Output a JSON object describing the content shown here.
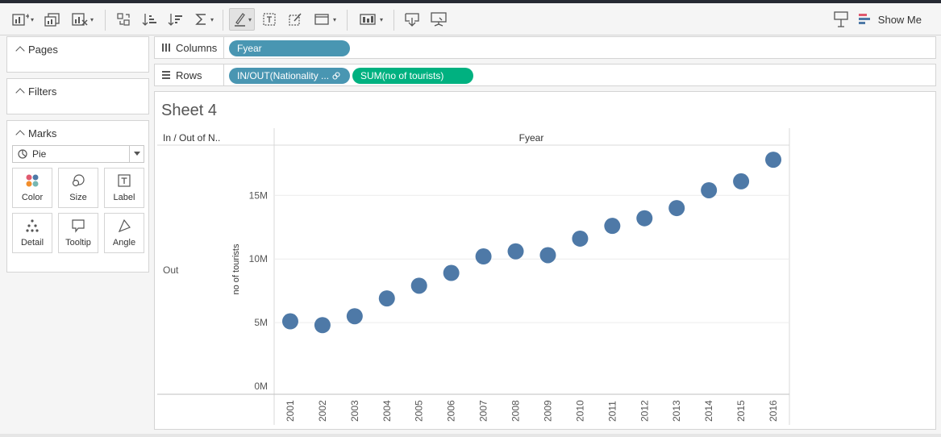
{
  "toolbar": {
    "show_me_label": "Show Me",
    "icons": [
      "new-worksheet-icon",
      "duplicate-sheet-icon",
      "clear-sheet-icon",
      "swap-rows-columns-icon",
      "sort-ascending-icon",
      "sort-descending-icon",
      "totals-icon",
      "highlight-icon",
      "labels-icon",
      "format-workbook-icon",
      "fit-icon",
      "show-cards-icon",
      "download-icon",
      "presentation-icon",
      "tooltip-pin-icon",
      "show-me-icon"
    ]
  },
  "panels": {
    "pages_title": "Pages",
    "filters_title": "Filters",
    "marks_title": "Marks",
    "marks_type": "Pie",
    "mark_buttons": [
      "Color",
      "Size",
      "Label",
      "Detail",
      "Tooltip",
      "Angle"
    ]
  },
  "shelves": {
    "columns_label": "Columns",
    "rows_label": "Rows",
    "columns_pill": "Fyear",
    "rows_pill_1": "IN/OUT(Nationality ...",
    "rows_pill_2": "SUM(no of tourists)"
  },
  "sheet": {
    "title": "Sheet 4",
    "row_header_label": "In / Out of N..",
    "column_header_label": "Fyear",
    "row_value": "Out"
  },
  "colors": {
    "mark": "#4e79a7",
    "dimension_pill": "#4996b2",
    "measure_pill": "#00b180"
  },
  "chart_data": {
    "type": "scatter",
    "x": [
      "2001",
      "2002",
      "2003",
      "2004",
      "2005",
      "2006",
      "2007",
      "2008",
      "2009",
      "2010",
      "2011",
      "2012",
      "2013",
      "2014",
      "2015",
      "2016"
    ],
    "values": [
      5.1,
      4.8,
      5.5,
      6.9,
      7.9,
      8.9,
      10.2,
      10.6,
      10.3,
      11.6,
      12.6,
      13.2,
      14.0,
      15.4,
      16.1,
      17.8
    ],
    "ylabel": "no of tourists",
    "xlabel": "Fyear",
    "y_ticks": [
      "0M",
      "5M",
      "10M",
      "15M"
    ],
    "y_tick_values": [
      0,
      5,
      10,
      15
    ],
    "ylim": [
      0,
      19.2
    ],
    "grid": true
  }
}
